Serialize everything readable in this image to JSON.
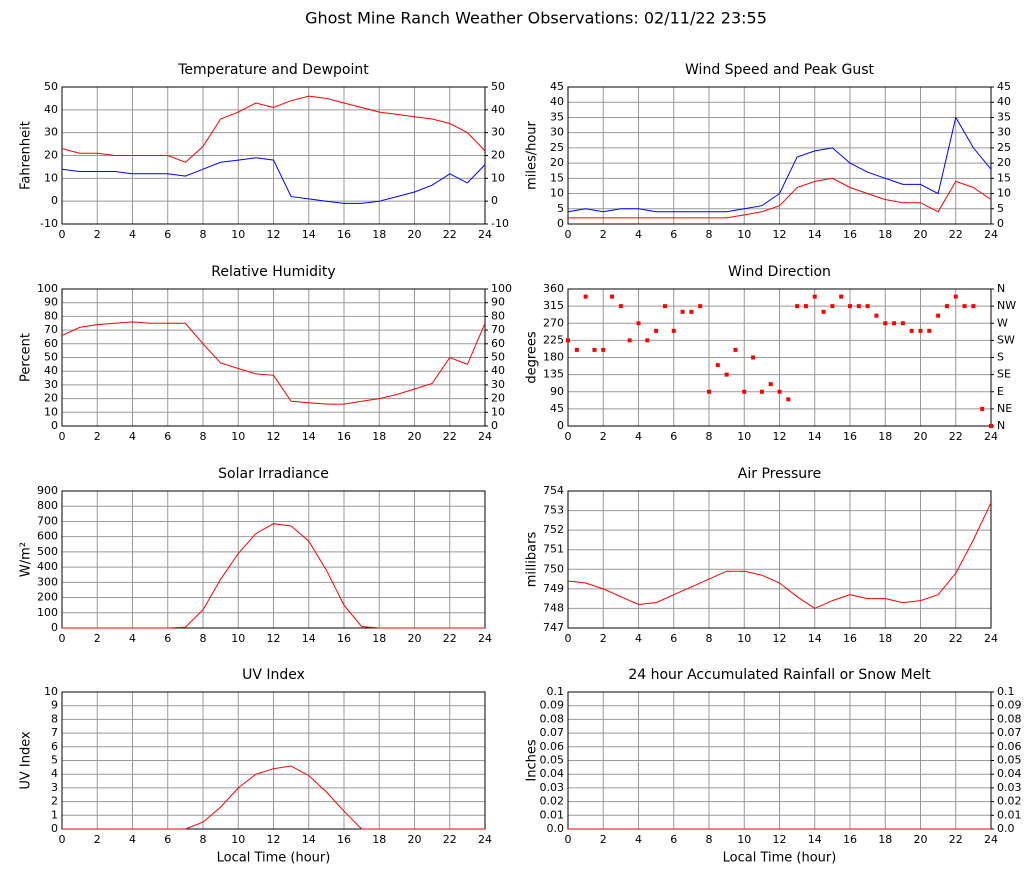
{
  "title": "Ghost Mine Ranch Weather Observations: 02/11/22 23:55",
  "chart_data": [
    {
      "type": "line",
      "title": "Temperature and Dewpoint",
      "ylabel": "Fahrenheit",
      "x": [
        0,
        1,
        2,
        3,
        4,
        5,
        6,
        7,
        8,
        9,
        10,
        11,
        12,
        13,
        14,
        15,
        16,
        17,
        18,
        19,
        20,
        21,
        22,
        23,
        24
      ],
      "xlim": [
        0,
        24
      ],
      "xticks": [
        0,
        2,
        4,
        6,
        8,
        10,
        12,
        14,
        16,
        18,
        20,
        22,
        24
      ],
      "ylim": [
        -10,
        50
      ],
      "yticks": [
        -10,
        0,
        10,
        20,
        30,
        40,
        50
      ],
      "y2ticks": [
        -10,
        0,
        10,
        20,
        30,
        40,
        50
      ],
      "grid": true,
      "series": [
        {
          "color": "#ff0000",
          "values": [
            23,
            21,
            21,
            20,
            20,
            20,
            20,
            17,
            24,
            36,
            39,
            43,
            41,
            44,
            46,
            45,
            43,
            41,
            39,
            38,
            37,
            36,
            34,
            30,
            22
          ]
        },
        {
          "color": "#0000ff",
          "values": [
            14,
            13,
            13,
            13,
            12,
            12,
            12,
            11,
            14,
            17,
            18,
            19,
            18,
            2,
            1,
            0,
            -1,
            -1,
            0,
            2,
            4,
            7,
            12,
            8,
            16
          ]
        }
      ]
    },
    {
      "type": "line",
      "title": "Wind Speed and Peak Gust",
      "ylabel": "miles/hour",
      "x": [
        0,
        1,
        2,
        3,
        4,
        5,
        6,
        7,
        8,
        9,
        10,
        11,
        12,
        13,
        14,
        15,
        16,
        17,
        18,
        19,
        20,
        21,
        22,
        23,
        24
      ],
      "xlim": [
        0,
        24
      ],
      "xticks": [
        0,
        2,
        4,
        6,
        8,
        10,
        12,
        14,
        16,
        18,
        20,
        22,
        24
      ],
      "ylim": [
        0,
        45
      ],
      "yticks": [
        0,
        5,
        10,
        15,
        20,
        25,
        30,
        35,
        40,
        45
      ],
      "y2ticks": [
        0,
        5,
        10,
        15,
        20,
        25,
        30,
        35,
        40,
        45
      ],
      "grid": true,
      "series": [
        {
          "color": "#0000ff",
          "values": [
            4,
            5,
            4,
            5,
            5,
            4,
            4,
            4,
            4,
            4,
            5,
            6,
            10,
            22,
            24,
            25,
            20,
            17,
            15,
            13,
            13,
            10,
            35,
            25,
            18
          ]
        },
        {
          "color": "#ff0000",
          "values": [
            2,
            2,
            2,
            2,
            2,
            2,
            2,
            2,
            2,
            2,
            3,
            4,
            6,
            12,
            14,
            15,
            12,
            10,
            8,
            7,
            7,
            4,
            14,
            12,
            8
          ]
        }
      ]
    },
    {
      "type": "line",
      "title": "Relative Humidity",
      "ylabel": "Percent",
      "x": [
        0,
        1,
        2,
        3,
        4,
        5,
        6,
        7,
        8,
        9,
        10,
        11,
        12,
        13,
        14,
        15,
        16,
        17,
        18,
        19,
        20,
        21,
        22,
        23,
        24
      ],
      "xlim": [
        0,
        24
      ],
      "xticks": [
        0,
        2,
        4,
        6,
        8,
        10,
        12,
        14,
        16,
        18,
        20,
        22,
        24
      ],
      "ylim": [
        0,
        100
      ],
      "yticks": [
        0,
        10,
        20,
        30,
        40,
        50,
        60,
        70,
        80,
        90,
        100
      ],
      "y2ticks": [
        0,
        10,
        20,
        30,
        40,
        50,
        60,
        70,
        80,
        90,
        100
      ],
      "grid": true,
      "series": [
        {
          "color": "#ff0000",
          "values": [
            66,
            72,
            74,
            75,
            76,
            75,
            75,
            75,
            60,
            46,
            42,
            38,
            37,
            18,
            17,
            16,
            16,
            18,
            20,
            23,
            27,
            31,
            50,
            45,
            75
          ]
        }
      ]
    },
    {
      "type": "scatter",
      "title": "Wind Direction",
      "ylabel": "degrees",
      "x": [
        0,
        0.5,
        1,
        1.5,
        2,
        2.5,
        3,
        3.5,
        4,
        4.5,
        5,
        5.5,
        6,
        6.5,
        7,
        7.5,
        8,
        8.5,
        9,
        9.5,
        10,
        10.5,
        11,
        11.5,
        12,
        12.5,
        13,
        13.5,
        14,
        14.5,
        15,
        15.5,
        16,
        16.5,
        17,
        17.5,
        18,
        18.5,
        19,
        19.5,
        20,
        20.5,
        21,
        21.5,
        22,
        22.5,
        23,
        23.5,
        24
      ],
      "xlim": [
        0,
        24
      ],
      "xticks": [
        0,
        2,
        4,
        6,
        8,
        10,
        12,
        14,
        16,
        18,
        20,
        22,
        24
      ],
      "ylim": [
        0,
        360
      ],
      "yticks": [
        0,
        45,
        90,
        135,
        180,
        225,
        270,
        315,
        360
      ],
      "y2ticks": [
        {
          "value": 0,
          "label": "N"
        },
        {
          "value": 45,
          "label": "NE"
        },
        {
          "value": 90,
          "label": "E"
        },
        {
          "value": 135,
          "label": "SE"
        },
        {
          "value": 180,
          "label": "S"
        },
        {
          "value": 225,
          "label": "SW"
        },
        {
          "value": 270,
          "label": "W"
        },
        {
          "value": 315,
          "label": "NW"
        },
        {
          "value": 360,
          "label": "N"
        }
      ],
      "grid": true,
      "series": [
        {
          "color": "#ff0000",
          "values": [
            225,
            200,
            340,
            200,
            200,
            340,
            315,
            225,
            270,
            225,
            250,
            315,
            250,
            300,
            300,
            315,
            90,
            160,
            135,
            200,
            90,
            180,
            90,
            110,
            90,
            70,
            315,
            315,
            340,
            300,
            315,
            340,
            315,
            315,
            315,
            290,
            270,
            270,
            270,
            250,
            250,
            250,
            290,
            315,
            340,
            315,
            315,
            45,
            0
          ]
        }
      ]
    },
    {
      "type": "line",
      "title": "Solar Irradiance",
      "ylabel": "W/m²",
      "x": [
        0,
        1,
        2,
        3,
        4,
        5,
        6,
        7,
        8,
        9,
        10,
        11,
        12,
        13,
        14,
        15,
        16,
        17,
        18,
        19,
        20,
        21,
        22,
        23,
        24
      ],
      "xlim": [
        0,
        24
      ],
      "xticks": [
        0,
        2,
        4,
        6,
        8,
        10,
        12,
        14,
        16,
        18,
        20,
        22,
        24
      ],
      "ylim": [
        0,
        900
      ],
      "yticks": [
        0,
        100,
        200,
        300,
        400,
        500,
        600,
        700,
        800,
        900
      ],
      "grid": true,
      "series": [
        {
          "color": "#ff0000",
          "values": [
            0,
            0,
            0,
            0,
            0,
            0,
            0,
            5,
            120,
            320,
            490,
            620,
            685,
            670,
            570,
            380,
            150,
            10,
            0,
            0,
            0,
            0,
            0,
            0,
            0
          ]
        }
      ]
    },
    {
      "type": "line",
      "title": "Air Pressure",
      "ylabel": "millibars",
      "x": [
        0,
        1,
        2,
        3,
        4,
        5,
        6,
        7,
        8,
        9,
        10,
        11,
        12,
        13,
        14,
        15,
        16,
        17,
        18,
        19,
        20,
        21,
        22,
        23,
        24
      ],
      "xlim": [
        0,
        24
      ],
      "xticks": [
        0,
        2,
        4,
        6,
        8,
        10,
        12,
        14,
        16,
        18,
        20,
        22,
        24
      ],
      "ylim": [
        747,
        754
      ],
      "yticks": [
        747,
        748,
        749,
        750,
        751,
        752,
        753,
        754
      ],
      "grid": true,
      "series": [
        {
          "color": "#ff0000",
          "values": [
            749.4,
            749.3,
            749.0,
            748.6,
            748.2,
            748.3,
            748.7,
            749.1,
            749.5,
            749.9,
            749.9,
            749.7,
            749.3,
            748.6,
            748.0,
            748.4,
            748.7,
            748.5,
            748.5,
            748.3,
            748.4,
            748.7,
            749.8,
            751.5,
            753.4
          ]
        }
      ]
    },
    {
      "type": "line",
      "title": "UV Index",
      "ylabel": "UV Index",
      "xlabel": "Local Time (hour)",
      "x": [
        0,
        1,
        2,
        3,
        4,
        5,
        6,
        7,
        8,
        9,
        10,
        11,
        12,
        13,
        14,
        15,
        16,
        17,
        18,
        19,
        20,
        21,
        22,
        23,
        24
      ],
      "xlim": [
        0,
        24
      ],
      "xticks": [
        0,
        2,
        4,
        6,
        8,
        10,
        12,
        14,
        16,
        18,
        20,
        22,
        24
      ],
      "ylim": [
        0,
        10
      ],
      "yticks": [
        0,
        1,
        2,
        3,
        4,
        5,
        6,
        7,
        8,
        9,
        10
      ],
      "grid": true,
      "series": [
        {
          "color": "#ff0000",
          "values": [
            0,
            0,
            0,
            0,
            0,
            0,
            0,
            0,
            0.5,
            1.6,
            3.0,
            4.0,
            4.4,
            4.6,
            3.9,
            2.7,
            1.3,
            0,
            0,
            0,
            0,
            0,
            0,
            0,
            0
          ]
        }
      ]
    },
    {
      "type": "line",
      "title": "24 hour Accumulated Rainfall or Snow Melt",
      "ylabel": "Inches",
      "xlabel": "Local Time (hour)",
      "x": [
        0,
        1,
        2,
        3,
        4,
        5,
        6,
        7,
        8,
        9,
        10,
        11,
        12,
        13,
        14,
        15,
        16,
        17,
        18,
        19,
        20,
        21,
        22,
        23,
        24
      ],
      "xlim": [
        0,
        24
      ],
      "xticks": [
        0,
        2,
        4,
        6,
        8,
        10,
        12,
        14,
        16,
        18,
        20,
        22,
        24
      ],
      "ylim": [
        0,
        0.1
      ],
      "yticks": [
        {
          "value": 0,
          "label": "0.0"
        },
        0.01,
        0.02,
        0.03,
        0.04,
        0.05,
        0.06,
        0.07,
        0.08,
        0.09,
        0.1
      ],
      "y2ticks": [
        {
          "value": 0,
          "label": "0.0"
        },
        0.01,
        0.02,
        0.03,
        0.04,
        0.05,
        0.06,
        0.07,
        0.08,
        0.09,
        0.1
      ],
      "grid": true,
      "series": [
        {
          "color": "#ff0000",
          "values": [
            0,
            0,
            0,
            0,
            0,
            0,
            0,
            0,
            0,
            0,
            0,
            0,
            0,
            0,
            0,
            0,
            0,
            0,
            0,
            0,
            0,
            0,
            0,
            0,
            0
          ]
        }
      ]
    }
  ]
}
